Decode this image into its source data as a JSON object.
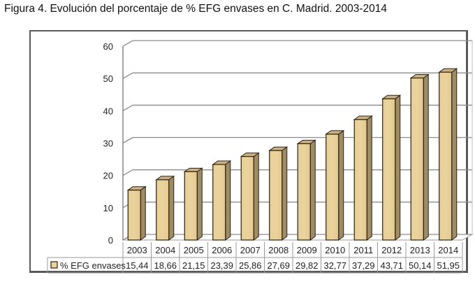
{
  "title": "Figura 4. Evolución del porcentaje de % EFG envases en C. Madrid. 2003-2014",
  "chart_data": {
    "type": "bar",
    "title": "Figura 4. Evolución del porcentaje de % EFG envases en C. Madrid. 2003-2014",
    "xlabel": "",
    "ylabel": "",
    "ylim": [
      0,
      60
    ],
    "yticks": [
      "0",
      "10",
      "20",
      "30",
      "40",
      "50",
      "60"
    ],
    "grid": true,
    "style": "3d-column",
    "legend_position": "data-table-left",
    "categories": [
      "2003",
      "2004",
      "2005",
      "2006",
      "2007",
      "2008",
      "2009",
      "2010",
      "2011",
      "2012",
      "2013",
      "2014"
    ],
    "series": [
      {
        "name": "% EFG envases",
        "values": [
          15.44,
          18.66,
          21.15,
          23.39,
          25.86,
          27.69,
          29.82,
          32.77,
          37.29,
          43.71,
          50.14,
          51.95
        ],
        "labels": [
          "15,44",
          "18,66",
          "21,15",
          "23,39",
          "25,86",
          "27,69",
          "29,82",
          "32,77",
          "37,29",
          "43,71",
          "50,14",
          "51,95"
        ],
        "color": "#EBD39E",
        "side_color": "#A08C64",
        "top_color": "#C9B385"
      }
    ]
  }
}
